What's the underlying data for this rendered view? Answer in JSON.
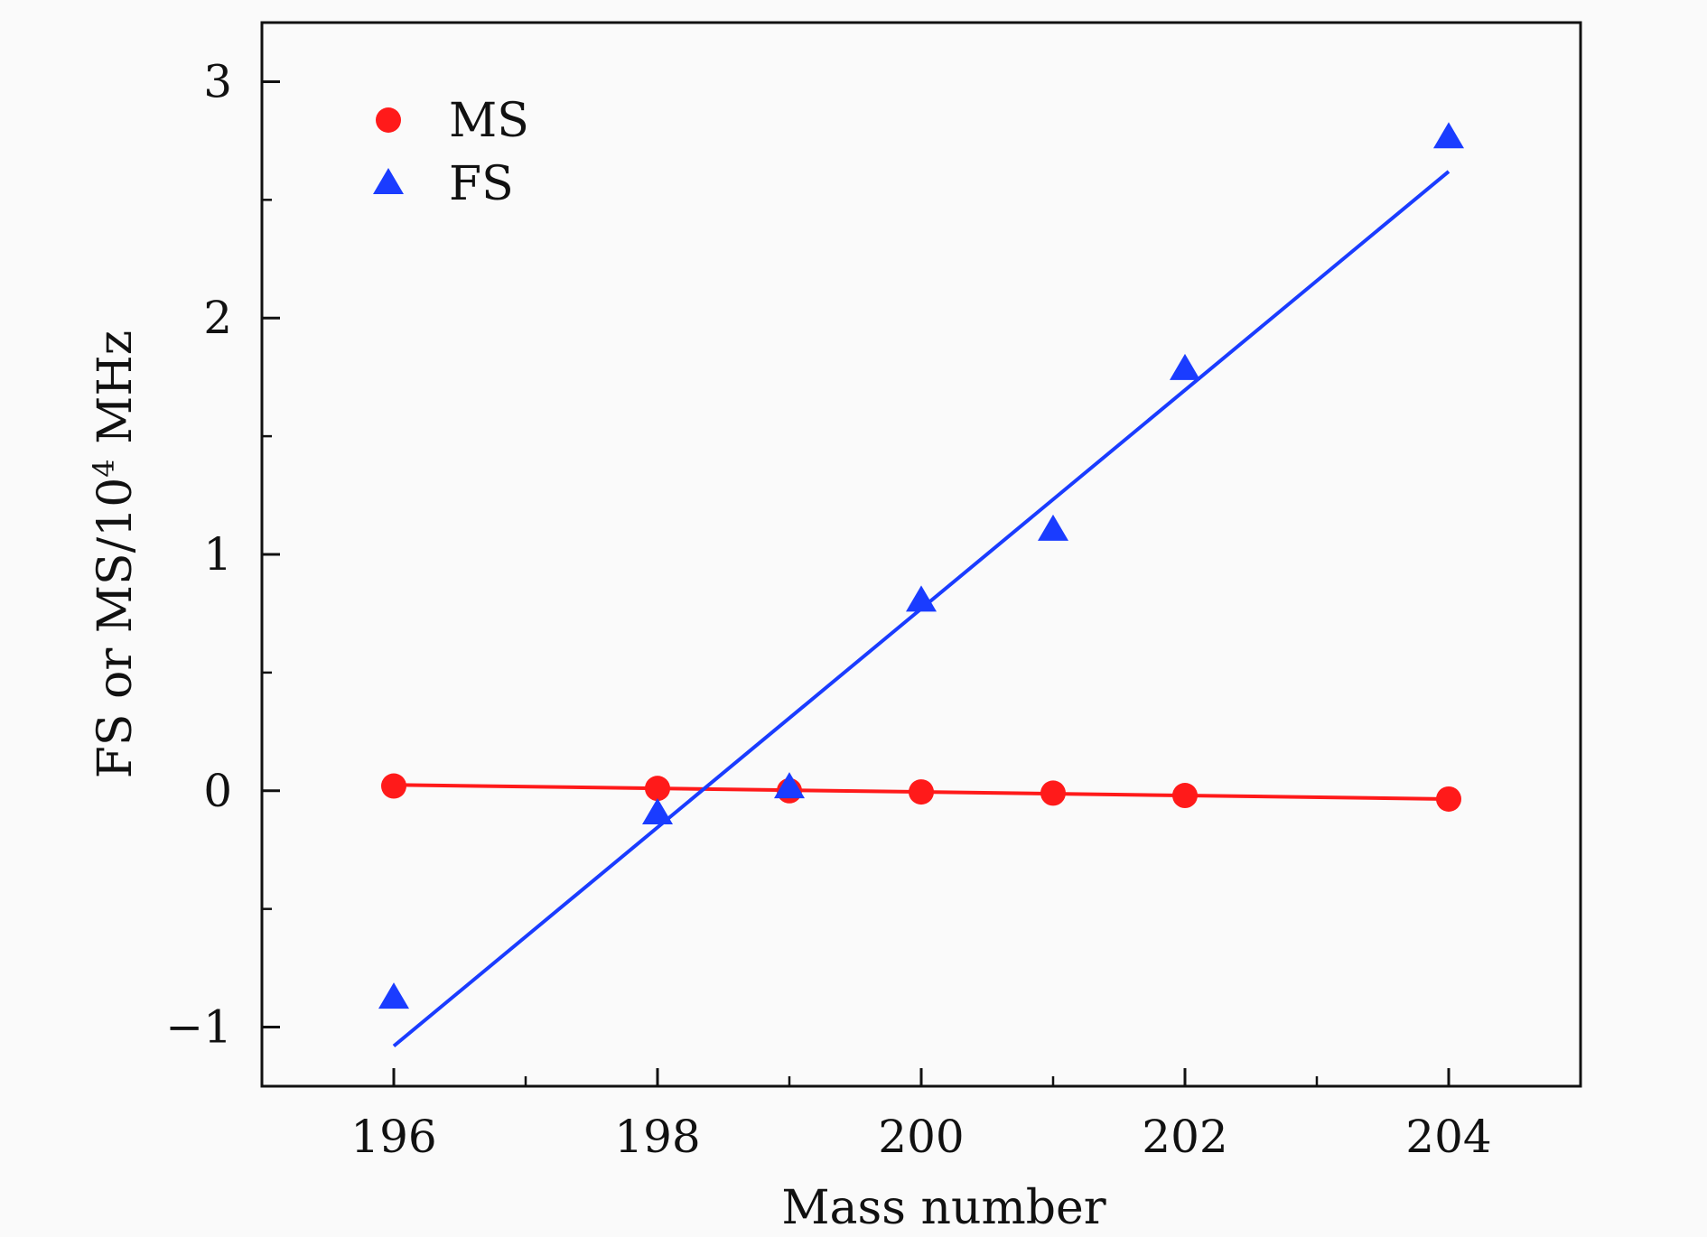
{
  "chart_data": {
    "type": "scatter",
    "xlabel": "Mass number",
    "ylabel": {
      "prefix": "FS or MS/10",
      "exponent": "4",
      "suffix": " MHz"
    },
    "xlim": [
      195,
      205
    ],
    "ylim": [
      -1.25,
      3.25
    ],
    "x_ticks": [
      196,
      198,
      200,
      202,
      204
    ],
    "x_tick_labels": [
      "196",
      "198",
      "200",
      "202",
      "204"
    ],
    "y_ticks": [
      -1,
      0,
      1,
      2,
      3
    ],
    "y_tick_labels": [
      "−1",
      "0",
      "1",
      "2",
      "3"
    ],
    "y_minor_ticks": [
      -0.5,
      0.5,
      1.5,
      2.5
    ],
    "x_minor_ticks": [
      197,
      199,
      201,
      203
    ],
    "grid": false,
    "legend_position": "top-left",
    "series": [
      {
        "name": "MS",
        "marker": "circle",
        "color": "#ff1a1a",
        "x": [
          196,
          198,
          199,
          200,
          201,
          202,
          204
        ],
        "y": [
          0.02,
          0.01,
          0.0,
          -0.005,
          -0.01,
          -0.02,
          -0.035
        ],
        "fit": {
          "x": [
            196,
            204
          ],
          "y": [
            0.025,
            -0.035
          ]
        }
      },
      {
        "name": "FS",
        "marker": "triangle",
        "color": "#1a3cff",
        "x": [
          196,
          198,
          199,
          200,
          201,
          202,
          204
        ],
        "y": [
          -0.88,
          -0.1,
          0.01,
          0.8,
          1.1,
          1.78,
          2.76
        ],
        "fit": {
          "x": [
            196,
            204
          ],
          "y": [
            -1.08,
            2.62
          ]
        }
      }
    ]
  }
}
